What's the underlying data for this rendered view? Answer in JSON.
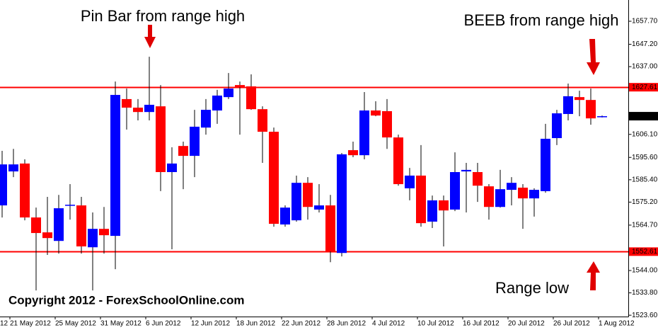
{
  "chart_data": {
    "type": "candlestick",
    "annotations": [
      "Pin Bar from range high",
      "BEEB from range high",
      "Range low"
    ],
    "copyright": "Copyright 2012 - ForexSchoolOnline.com",
    "clipped_date_label": "12",
    "categories": [
      null,
      "21 May 2012",
      null,
      null,
      null,
      "25 May 2012",
      null,
      null,
      null,
      "31 May 2012",
      null,
      null,
      null,
      "6 Jun 2012",
      null,
      null,
      null,
      "12 Jun 2012",
      null,
      null,
      null,
      "18 Jun 2012",
      null,
      null,
      null,
      "22 Jun 2012",
      null,
      null,
      null,
      "28 Jun 2012",
      null,
      null,
      null,
      "4 Jul 2012",
      null,
      null,
      null,
      "10 Jul 2012",
      null,
      null,
      null,
      "16 Jul 2012",
      null,
      null,
      null,
      "20 Jul 2012",
      null,
      null,
      null,
      "26 Jul 2012",
      null,
      null,
      null,
      "1 Aug 2012"
    ],
    "open": [
      1573.7,
      1589.2,
      1592.8,
      1568.2,
      1561.4,
      1557.5,
      1573.7,
      1573.7,
      1554.6,
      1563.0,
      1559.8,
      1622.2,
      1618.3,
      1616.3,
      1618.9,
      1588.9,
      1600.8,
      1596.3,
      1609.2,
      1617.0,
      1623.1,
      1628.6,
      1628.0,
      1617.6,
      1607.3,
      1565.0,
      1566.9,
      1584.0,
      1571.8,
      1573.7,
      1552.0,
      1598.9,
      1596.6,
      1617.0,
      1616.7,
      1604.7,
      1581.5,
      1587.3,
      1566.3,
      1576.0,
      1571.8,
      1589.2,
      1588.9,
      1582.4,
      1573.0,
      1580.8,
      1581.8,
      1576.9,
      1580.2,
      1604.4,
      1615.4,
      1623.1,
      1621.8,
      1614.1
    ],
    "high": [
      1598.6,
      1599.5,
      1594.7,
      1572.7,
      1577.6,
      1578.5,
      1583.4,
      1577.6,
      1570.5,
      1573.0,
      1630.2,
      1627.0,
      1622.2,
      1641.5,
      1628.6,
      1600.2,
      1602.8,
      1617.3,
      1622.2,
      1626.4,
      1634.1,
      1630.2,
      1633.5,
      1618.9,
      1609.2,
      1573.7,
      1587.3,
      1586.6,
      1583.4,
      1578.5,
      1597.6,
      1602.8,
      1625.4,
      1621.2,
      1622.2,
      1606.0,
      1590.8,
      1601.2,
      1578.2,
      1578.2,
      1597.9,
      1593.1,
      1593.1,
      1583.4,
      1589.9,
      1586.6,
      1583.4,
      1581.5,
      1610.9,
      1617.3,
      1629.3,
      1626.0,
      1627.0,
      1614.7
    ],
    "low": [
      1568.2,
      1586.6,
      1566.9,
      1534.9,
      1551.1,
      1551.7,
      1567.2,
      1551.7,
      1534.9,
      1551.7,
      1544.6,
      1608.3,
      1612.5,
      1612.5,
      1580.2,
      1553.7,
      1581.1,
      1586.6,
      1606.0,
      1610.9,
      1622.2,
      1606.0,
      1617.3,
      1593.1,
      1564.0,
      1564.0,
      1566.3,
      1567.2,
      1570.5,
      1547.8,
      1550.4,
      1595.7,
      1594.7,
      1614.4,
      1599.5,
      1582.7,
      1576.0,
      1564.0,
      1563.4,
      1555.0,
      1571.1,
      1570.5,
      1575.3,
      1567.2,
      1572.7,
      1573.7,
      1563.0,
      1568.6,
      1579.5,
      1601.2,
      1612.5,
      1614.4,
      1610.5,
      1613.8
    ],
    "close": [
      1592.4,
      1592.4,
      1568.2,
      1561.1,
      1558.8,
      1572.4,
      1574.0,
      1555.0,
      1563.0,
      1560.1,
      1624.1,
      1618.3,
      1616.3,
      1619.6,
      1588.9,
      1592.8,
      1596.3,
      1609.6,
      1617.3,
      1623.8,
      1627.0,
      1627.6,
      1617.6,
      1607.3,
      1565.3,
      1572.7,
      1584.0,
      1573.0,
      1573.7,
      1552.7,
      1597.0,
      1596.6,
      1617.0,
      1614.7,
      1604.7,
      1583.4,
      1587.3,
      1565.6,
      1576.0,
      1571.4,
      1588.9,
      1589.9,
      1582.7,
      1573.0,
      1581.1,
      1584.0,
      1576.9,
      1580.8,
      1604.1,
      1615.7,
      1623.5,
      1621.8,
      1613.4,
      1614.4
    ],
    "up_color": "#0000ff",
    "down_color": "#ff0000",
    "wick_color": "#000000",
    "hlines": [
      {
        "value": 1627.61,
        "label": "1627.61"
      },
      {
        "value": 1552.61,
        "label": "1552.61"
      }
    ],
    "hline_color": "#ff0000",
    "current_price": {
      "value": 1614.4,
      "label": "1614.40"
    },
    "ylim": [
      1523.0,
      1667.4
    ],
    "yticks": [
      {
        "value": 1657.7,
        "label": "1657.70"
      },
      {
        "value": 1647.2,
        "label": "1647.20"
      },
      {
        "value": 1637.0,
        "label": "1637.00"
      },
      {
        "value": 1606.1,
        "label": "1606.10"
      },
      {
        "value": 1595.6,
        "label": "1595.60"
      },
      {
        "value": 1585.4,
        "label": "1585.40"
      },
      {
        "value": 1575.2,
        "label": "1575.20"
      },
      {
        "value": 1564.7,
        "label": "1564.70"
      },
      {
        "value": 1544.0,
        "label": "1544.00"
      },
      {
        "value": 1533.8,
        "label": "1533.80"
      },
      {
        "value": 1523.6,
        "label": "1523.60"
      }
    ]
  }
}
